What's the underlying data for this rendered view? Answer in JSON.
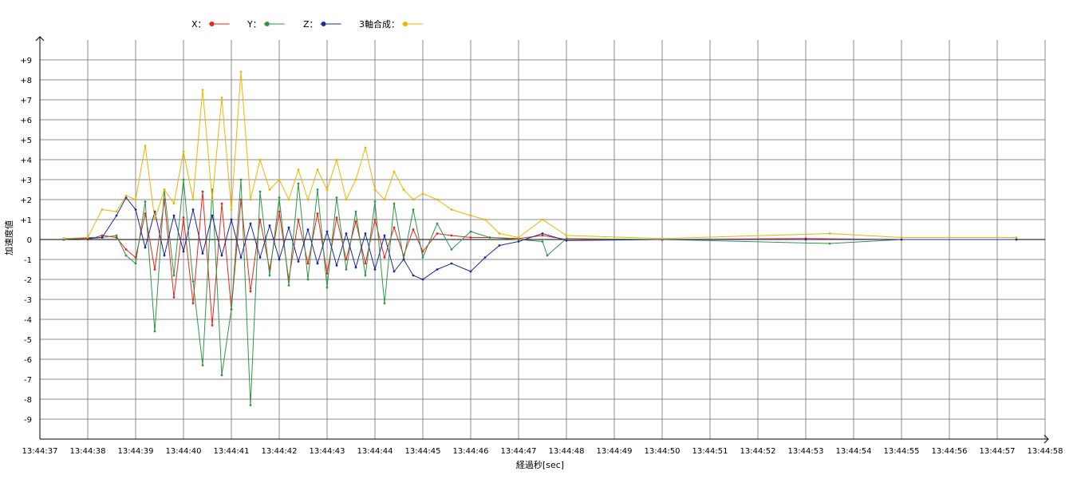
{
  "chart_data": {
    "type": "line",
    "xlabel": "経過秒[sec]",
    "ylabel": "加速度値",
    "xlim": [
      "13:44:37",
      "13:44:58"
    ],
    "ylim": [
      -10,
      10
    ],
    "grid": true,
    "legend_position": "top-left",
    "x_ticks": [
      "13:44:37",
      "13:44:38",
      "13:44:39",
      "13:44:40",
      "13:44:41",
      "13:44:42",
      "13:44:43",
      "13:44:44",
      "13:44:45",
      "13:44:46",
      "13:44:47",
      "13:44:48",
      "13:44:49",
      "13:44:50",
      "13:44:51",
      "13:44:52",
      "13:44:53",
      "13:44:54",
      "13:44:55",
      "13:44:56",
      "13:44:57",
      "13:44:58"
    ],
    "y_ticks": [
      "+9",
      "+8",
      "+7",
      "+6",
      "+5",
      "+4",
      "+3",
      "+2",
      "+1",
      "0",
      "-1",
      "-2",
      "-3",
      "-4",
      "-5",
      "-6",
      "-7",
      "-8",
      "-9"
    ],
    "series": [
      {
        "name": "X",
        "legend_label": "X：",
        "color": "#e8261c",
        "x": [
          "13:44:37.5",
          "13:44:38.0",
          "13:44:38.3",
          "13:44:38.6",
          "13:44:38.8",
          "13:44:39.0",
          "13:44:39.2",
          "13:44:39.4",
          "13:44:39.6",
          "13:44:39.8",
          "13:44:40.0",
          "13:44:40.2",
          "13:44:40.4",
          "13:44:40.6",
          "13:44:40.8",
          "13:44:41.0",
          "13:44:41.2",
          "13:44:41.4",
          "13:44:41.6",
          "13:44:41.8",
          "13:44:42.0",
          "13:44:42.2",
          "13:44:42.4",
          "13:44:42.6",
          "13:44:42.8",
          "13:44:43.0",
          "13:44:43.2",
          "13:44:43.4",
          "13:44:43.6",
          "13:44:43.8",
          "13:44:44.0",
          "13:44:44.2",
          "13:44:44.4",
          "13:44:44.6",
          "13:44:44.8",
          "13:44:45.0",
          "13:44:45.3",
          "13:44:45.6",
          "13:44:46.0",
          "13:44:46.4",
          "13:44:47.0",
          "13:44:47.5",
          "13:44:48.0",
          "13:44:50.0",
          "13:44:53.0",
          "13:44:55.0",
          "13:44:57.4"
        ],
        "y": [
          0.05,
          0.0,
          0.2,
          0.1,
          -0.5,
          -0.9,
          1.3,
          -1.5,
          2.0,
          -2.9,
          1.1,
          -3.2,
          2.4,
          -4.3,
          1.8,
          -3.5,
          2.0,
          -2.6,
          1.0,
          -1.5,
          1.4,
          -2.0,
          1.0,
          -1.2,
          1.3,
          -1.7,
          1.1,
          -1.0,
          0.9,
          -1.2,
          1.0,
          -0.9,
          0.6,
          -0.8,
          0.5,
          -0.6,
          0.3,
          0.2,
          0.1,
          0.1,
          0.05,
          0.2,
          0.0,
          0.0,
          0.05,
          0.0,
          0.0
        ]
      },
      {
        "name": "Y",
        "legend_label": "Y：",
        "color": "#2e9648",
        "x": [
          "13:44:37.5",
          "13:44:38.0",
          "13:44:38.3",
          "13:44:38.6",
          "13:44:38.8",
          "13:44:39.0",
          "13:44:39.2",
          "13:44:39.4",
          "13:44:39.6",
          "13:44:39.8",
          "13:44:40.0",
          "13:44:40.2",
          "13:44:40.4",
          "13:44:40.6",
          "13:44:40.8",
          "13:44:41.0",
          "13:44:41.2",
          "13:44:41.4",
          "13:44:41.6",
          "13:44:41.8",
          "13:44:42.0",
          "13:44:42.2",
          "13:44:42.4",
          "13:44:42.6",
          "13:44:42.8",
          "13:44:43.0",
          "13:44:43.2",
          "13:44:43.4",
          "13:44:43.6",
          "13:44:43.8",
          "13:44:44.0",
          "13:44:44.2",
          "13:44:44.4",
          "13:44:44.6",
          "13:44:44.8",
          "13:44:45.0",
          "13:44:45.3",
          "13:44:45.6",
          "13:44:46.0",
          "13:44:46.4",
          "13:44:47.0",
          "13:44:47.5",
          "13:44:47.6",
          "13:44:48.0",
          "13:44:50.0",
          "13:44:53.5",
          "13:44:55.0",
          "13:44:57.4"
        ],
        "y": [
          0.0,
          0.1,
          0.1,
          0.2,
          -0.8,
          -1.2,
          1.9,
          -4.6,
          2.5,
          -1.8,
          3.0,
          -2.1,
          -6.3,
          2.5,
          -6.8,
          -3.5,
          3.0,
          -8.3,
          2.4,
          -1.8,
          2.1,
          -2.3,
          2.8,
          -2.0,
          2.5,
          -2.4,
          2.1,
          -1.5,
          1.4,
          -1.8,
          1.9,
          -3.2,
          1.8,
          -1.0,
          1.5,
          -0.9,
          0.8,
          -0.5,
          0.4,
          0.1,
          0.0,
          -0.1,
          -0.8,
          0.05,
          0.0,
          -0.2,
          0.0,
          0.0
        ]
      },
      {
        "name": "Z",
        "legend_label": "Z：",
        "color": "#1c2a9c",
        "x": [
          "13:44:37.5",
          "13:44:38.0",
          "13:44:38.3",
          "13:44:38.6",
          "13:44:38.8",
          "13:44:39.0",
          "13:44:39.2",
          "13:44:39.4",
          "13:44:39.6",
          "13:44:39.8",
          "13:44:40.0",
          "13:44:40.2",
          "13:44:40.4",
          "13:44:40.6",
          "13:44:40.8",
          "13:44:41.0",
          "13:44:41.2",
          "13:44:41.4",
          "13:44:41.6",
          "13:44:41.8",
          "13:44:42.0",
          "13:44:42.2",
          "13:44:42.4",
          "13:44:42.6",
          "13:44:42.8",
          "13:44:43.0",
          "13:44:43.2",
          "13:44:43.4",
          "13:44:43.6",
          "13:44:43.8",
          "13:44:44.0",
          "13:44:44.2",
          "13:44:44.4",
          "13:44:44.6",
          "13:44:44.8",
          "13:44:45.0",
          "13:44:45.3",
          "13:44:45.6",
          "13:44:46.0",
          "13:44:46.3",
          "13:44:46.6",
          "13:44:47.0",
          "13:44:47.5",
          "13:44:48.0",
          "13:44:50.0",
          "13:44:53.0",
          "13:44:55.0",
          "13:44:57.4"
        ],
        "y": [
          0.0,
          0.05,
          0.1,
          1.2,
          2.1,
          1.5,
          -0.4,
          1.4,
          -0.8,
          1.2,
          -0.6,
          1.5,
          -0.7,
          1.2,
          -0.8,
          1.0,
          -0.9,
          0.8,
          -0.9,
          0.7,
          -1.0,
          0.6,
          -1.1,
          0.5,
          -1.2,
          0.4,
          -1.3,
          0.3,
          -1.4,
          0.3,
          -1.5,
          0.2,
          -1.6,
          -1.0,
          -1.8,
          -2.0,
          -1.5,
          -1.2,
          -1.6,
          -0.9,
          -0.3,
          -0.1,
          0.3,
          -0.05,
          0.0,
          0.0,
          0.0,
          0.0
        ]
      },
      {
        "name": "3軸合成",
        "legend_label": "3軸合成：",
        "color": "#f0b400",
        "x": [
          "13:44:37.5",
          "13:44:38.0",
          "13:44:38.3",
          "13:44:38.6",
          "13:44:38.8",
          "13:44:39.0",
          "13:44:39.2",
          "13:44:39.4",
          "13:44:39.6",
          "13:44:39.8",
          "13:44:40.0",
          "13:44:40.2",
          "13:44:40.4",
          "13:44:40.6",
          "13:44:40.8",
          "13:44:41.0",
          "13:44:41.2",
          "13:44:41.4",
          "13:44:41.6",
          "13:44:41.8",
          "13:44:42.0",
          "13:44:42.2",
          "13:44:42.4",
          "13:44:42.6",
          "13:44:42.8",
          "13:44:43.0",
          "13:44:43.2",
          "13:44:43.4",
          "13:44:43.6",
          "13:44:43.8",
          "13:44:44.0",
          "13:44:44.2",
          "13:44:44.4",
          "13:44:44.6",
          "13:44:44.8",
          "13:44:45.0",
          "13:44:45.3",
          "13:44:45.6",
          "13:44:46.0",
          "13:44:46.3",
          "13:44:46.6",
          "13:44:47.0",
          "13:44:47.5",
          "13:44:48.0",
          "13:44:50.0",
          "13:44:53.5",
          "13:44:55.0",
          "13:44:57.4"
        ],
        "y": [
          0.05,
          0.1,
          1.5,
          1.4,
          2.2,
          2.0,
          4.7,
          1.0,
          2.5,
          1.8,
          4.4,
          2.0,
          7.5,
          2.0,
          7.1,
          1.5,
          8.4,
          2.0,
          4.0,
          2.5,
          3.0,
          2.0,
          3.5,
          2.0,
          3.5,
          2.5,
          4.0,
          2.0,
          3.0,
          4.6,
          2.5,
          2.0,
          3.4,
          2.5,
          2.0,
          2.3,
          2.0,
          1.5,
          1.2,
          1.0,
          0.3,
          0.1,
          1.0,
          0.2,
          0.05,
          0.3,
          0.1,
          0.1
        ]
      }
    ]
  }
}
